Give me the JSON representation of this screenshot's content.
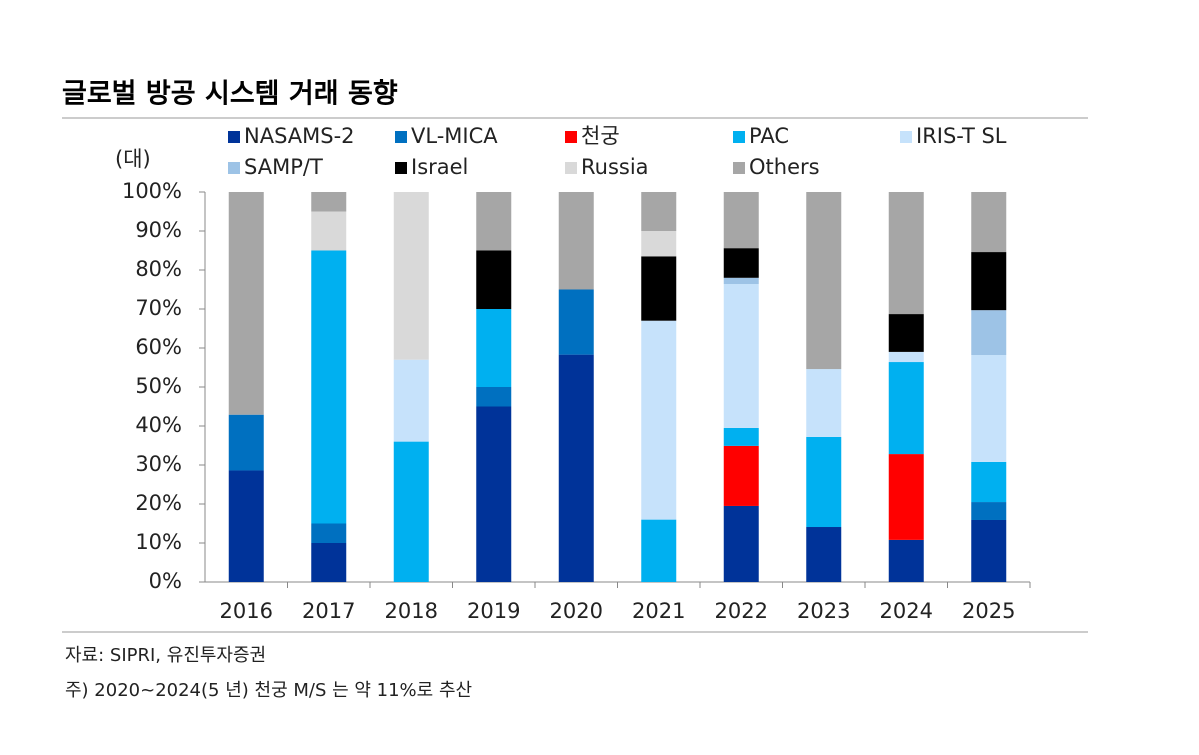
{
  "chart_data": {
    "type": "stacked_bar",
    "title": "글로벌 방공 시스템 거래 동향",
    "y_label": "(대)",
    "categories": [
      "2016",
      "2017",
      "2018",
      "2019",
      "2020",
      "2021",
      "2022",
      "2023",
      "2024",
      "2025"
    ],
    "series": [
      {
        "name": "NASAMS-2",
        "color": "#003399",
        "values": [
          28.6,
          10,
          0,
          45,
          58.3,
          0,
          19.5,
          14.1,
          10.8,
          15.9
        ]
      },
      {
        "name": "VL-MICA",
        "color": "#0070c0",
        "values": [
          14.3,
          5,
          0,
          5,
          16.7,
          0,
          0,
          0,
          0,
          4.6
        ]
      },
      {
        "name": "천궁",
        "color": "#ff0000",
        "values": [
          0,
          0,
          0,
          0,
          0,
          0,
          15.4,
          0,
          22,
          0
        ]
      },
      {
        "name": "PAC",
        "color": "#00b0f0",
        "values": [
          0,
          70,
          36,
          20,
          0,
          16,
          4.6,
          23.1,
          23.6,
          10.3
        ]
      },
      {
        "name": "IRIS-T SL",
        "color": "#c6e2fb",
        "values": [
          0,
          0,
          21,
          0,
          0,
          51,
          36.9,
          17.4,
          2.6,
          27.4
        ]
      },
      {
        "name": "SAMP/T",
        "color": "#9dc3e6",
        "values": [
          0,
          0,
          0,
          0,
          0,
          0,
          1.6,
          0,
          0,
          11.5
        ]
      },
      {
        "name": "Israel",
        "color": "#000000",
        "values": [
          0,
          0,
          0,
          15,
          0,
          16.5,
          7.6,
          0,
          9.7,
          14.9
        ]
      },
      {
        "name": "Russia",
        "color": "#d9d9d9",
        "values": [
          0,
          10,
          43,
          0,
          0,
          6.5,
          0,
          0,
          0,
          0
        ]
      },
      {
        "name": "Others",
        "color": "#a6a6a6",
        "values": [
          57.1,
          5,
          0,
          15,
          25,
          10,
          14.4,
          45.4,
          31.3,
          15.4
        ]
      }
    ],
    "ylim": [
      0,
      100
    ],
    "yticks": [
      {
        "value": 0,
        "label": "0%"
      },
      {
        "value": 10,
        "label": "10%"
      },
      {
        "value": 20,
        "label": "20%"
      },
      {
        "value": 30,
        "label": "30%"
      },
      {
        "value": 40,
        "label": "40%"
      },
      {
        "value": 50,
        "label": "50%"
      },
      {
        "value": 60,
        "label": "60%"
      },
      {
        "value": 70,
        "label": "70%"
      },
      {
        "value": 80,
        "label": "80%"
      },
      {
        "value": 90,
        "label": "90%"
      },
      {
        "value": 100,
        "label": "100%"
      }
    ],
    "source": "자료: SIPRI, 유진투자증권",
    "note": "주) 2020~2024(5 년) 천궁 M/S 는 약 11%로 추산"
  }
}
